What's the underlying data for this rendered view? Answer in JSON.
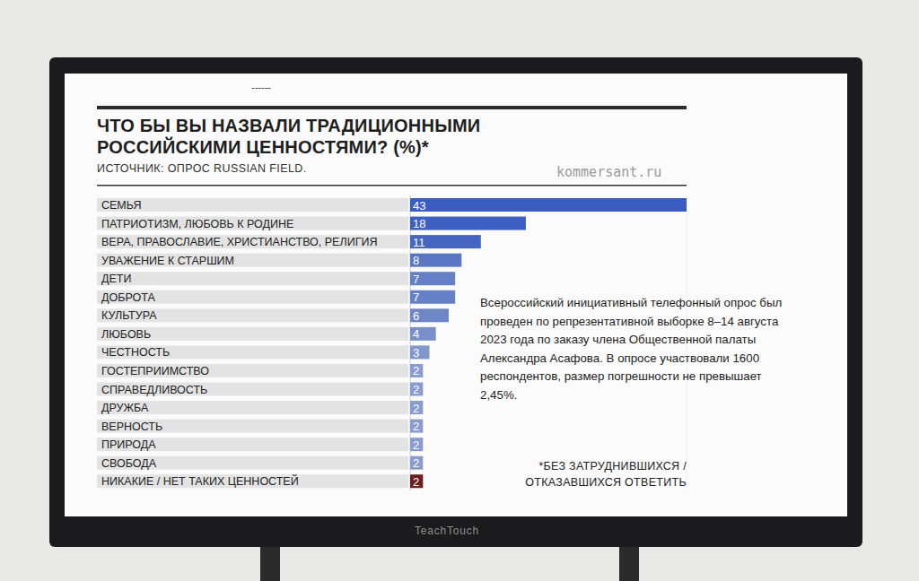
{
  "chart_data": {
    "type": "bar",
    "orientation": "horizontal",
    "title": "ЧТО БЫ ВЫ НАЗВАЛИ ТРАДИЦИОННЫМИ\nРОССИЙСКИМИ ЦЕННОСТЯМИ? (%)*",
    "subtitle": "ИСТОЧНИК: ОПРОС RUSSIAN FIELD.",
    "categories": [
      "СЕМЬЯ",
      "ПАТРИОТИЗМ, ЛЮБОВЬ  К РОДИНЕ",
      "ВЕРА, ПРАВОСЛАВИЕ, ХРИСТИАНСТВО, РЕЛИГИЯ",
      "УВАЖЕНИЕ К СТАРШИМ",
      "ДЕТИ",
      "ДОБРОТА",
      "КУЛЬТУРА",
      "ЛЮБОВЬ",
      "ЧЕСТНОСТЬ",
      "ГОСТЕПРИИМСТВО",
      "СПРАВЕДЛИВОСТЬ",
      "ДРУЖБА",
      "ВЕРНОСТЬ",
      "ПРИРОДА",
      "СВОБОДА",
      "НИКАКИЕ / НЕТ ТАКИХ ЦЕННОСТЕЙ"
    ],
    "values": [
      43,
      18,
      11,
      8,
      7,
      7,
      6,
      4,
      3,
      2,
      2,
      2,
      2,
      2,
      2,
      2
    ],
    "colors": [
      "#3b5dc2",
      "#3d5fc2",
      "#4565c0",
      "#5a77c4",
      "#6580c6",
      "#6580c6",
      "#6c86c6",
      "#7890c9",
      "#8097cb",
      "#889dce",
      "#889dce",
      "#889dce",
      "#889dce",
      "#889dce",
      "#889dce",
      "#6e1c1e"
    ],
    "xlim": [
      0,
      43
    ],
    "data_labels": true,
    "tick_labels": false,
    "grid": false,
    "annotations": [
      "------",
      "kommersant.ru",
      "Всероссийский инициативный телефонный опрос был\nпроведен по репрезентативной выборке 8–14 августа\n2023 года по заказу члена Общественной палаты\nАлександра Асафова. В опросе участвовали 1600\nреспондентов, размер погрешности не превышает\n2,45%.",
      "*БЕЗ ЗАТРУДНИВШИХСЯ /\nОТКАЗАВШИХСЯ ОТВЕТИТЬ",
      "TeachTouch"
    ]
  }
}
